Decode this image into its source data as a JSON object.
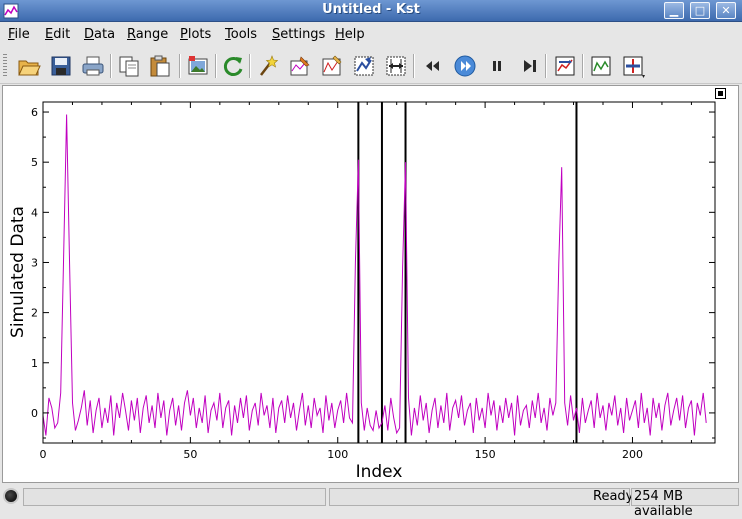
{
  "window": {
    "title": "Untitled - Kst",
    "buttons": {
      "minimize": "▁",
      "maximize": "□",
      "close": "✕"
    }
  },
  "menu": {
    "items": [
      {
        "pre": "",
        "ul": "F",
        "post": "ile"
      },
      {
        "pre": "",
        "ul": "E",
        "post": "dit"
      },
      {
        "pre": "",
        "ul": "D",
        "post": "ata"
      },
      {
        "pre": "",
        "ul": "R",
        "post": "ange"
      },
      {
        "pre": "",
        "ul": "P",
        "post": "lots"
      },
      {
        "pre": "",
        "ul": "T",
        "post": "ools"
      },
      {
        "pre": "",
        "ul": "S",
        "post": "ettings"
      },
      {
        "pre": "",
        "ul": "H",
        "post": "elp"
      }
    ]
  },
  "toolbar": {
    "icons": [
      "open-icon",
      "save-icon",
      "print-icon",
      "copy-icon",
      "paste-icon",
      "export-image-icon",
      "reload-icon",
      "data-wizard-icon",
      "edit-data-icon",
      "plugin-icon",
      "equation-icon",
      "zoom-x-icon",
      "back-icon",
      "play-icon",
      "pause-icon",
      "end-icon",
      "plot-layout-icon",
      "curve-icon",
      "add-plot-icon"
    ]
  },
  "status": {
    "state": "Ready",
    "memory": "254 MB available"
  },
  "colors": {
    "curve": "#c000c0",
    "markers": "#000000",
    "accent": "#4a7bc4"
  },
  "chart_data": {
    "type": "line",
    "xlabel": "Index",
    "ylabel": "Simulated Data",
    "xlim": [
      0,
      228
    ],
    "ylim": [
      -0.6,
      6.2
    ],
    "x_ticks": [
      "0",
      "50",
      "100",
      "150",
      "200"
    ],
    "y_ticks": [
      "0",
      "1",
      "2",
      "3",
      "4",
      "5",
      "6"
    ],
    "vertical_markers": [
      107,
      115,
      123,
      181
    ],
    "series": [
      {
        "values": [
          -0.05,
          -0.45,
          0.3,
          0.1,
          -0.3,
          -0.2,
          0.4,
          3.1,
          5.95,
          3.05,
          0.2,
          -0.35,
          -0.15,
          0.1,
          0.45,
          -0.25,
          0.25,
          -0.4,
          0.05,
          0.3,
          -0.3,
          0.1,
          -0.2,
          0.35,
          -0.45,
          0.2,
          -0.1,
          0.4,
          0.05,
          -0.35,
          0.25,
          -0.15,
          0.3,
          -0.4,
          0.1,
          0.35,
          -0.2,
          0.15,
          -0.3,
          0.4,
          -0.1,
          0.25,
          -0.45,
          0.05,
          0.3,
          -0.25,
          0.15,
          -0.35,
          0.2,
          0.45,
          -0.05,
          0.3,
          -0.3,
          0.1,
          -0.2,
          0.35,
          -0.4,
          0.05,
          0.2,
          -0.15,
          0.4,
          -0.3,
          0.1,
          0.25,
          -0.45,
          0.15,
          -0.2,
          0.3,
          -0.1,
          0.35,
          -0.35,
          0.05,
          0.2,
          -0.25,
          0.4,
          -0.05,
          0.15,
          -0.3,
          0.3,
          -0.4,
          0.1,
          0.25,
          -0.2,
          0.35,
          -0.1,
          0.2,
          -0.35,
          0.05,
          0.4,
          -0.25,
          0.15,
          -0.3,
          0.3,
          -0.05,
          0.1,
          -0.4,
          0.35,
          -0.15,
          0.2,
          -0.3,
          0.05,
          0.25,
          -0.2,
          0.4,
          -0.1,
          -0.2,
          3.0,
          5.05,
          0.2,
          -0.35,
          0.1,
          -0.25,
          -0.35,
          0.05,
          -0.3,
          -0.2,
          0.15,
          -0.35,
          0.3,
          -0.1,
          -0.4,
          -0.3,
          2.9,
          5.0,
          0.3,
          -0.45,
          0.1,
          -0.25,
          0.35,
          -0.15,
          0.2,
          -0.4,
          0.05,
          0.3,
          -0.3,
          0.15,
          -0.2,
          0.4,
          -0.35,
          0.1,
          0.25,
          -0.1,
          0.35,
          -0.25,
          0.05,
          0.2,
          -0.4,
          0.3,
          -0.15,
          0.1,
          -0.3,
          0.4,
          -0.05,
          0.25,
          -0.35,
          0.15,
          -0.2,
          0.3,
          -0.1,
          0.2,
          -0.45,
          0.35,
          -0.25,
          0.05,
          0.15,
          -0.3,
          0.25,
          -0.1,
          0.4,
          -0.2,
          0.1,
          -0.35,
          0.3,
          -0.05,
          0.2,
          3.0,
          4.9,
          0.2,
          -0.25,
          0.35,
          -0.15,
          0.1,
          -0.4,
          0.3,
          -0.2,
          0.05,
          0.25,
          -0.3,
          0.4,
          -0.1,
          0.15,
          -0.35,
          0.2,
          -0.05,
          0.35,
          -0.25,
          0.1,
          -0.4,
          0.3,
          -0.15,
          0.05,
          0.25,
          -0.3,
          0.4,
          -0.2,
          0.1,
          -0.45,
          0.3,
          -0.1,
          0.2,
          -0.35,
          0.15,
          0.4,
          -0.25,
          0.05,
          0.3,
          -0.15,
          0.35,
          -0.3,
          0.1,
          0.25,
          -0.45,
          0.2,
          -0.05,
          0.4,
          -0.2
        ]
      }
    ]
  }
}
